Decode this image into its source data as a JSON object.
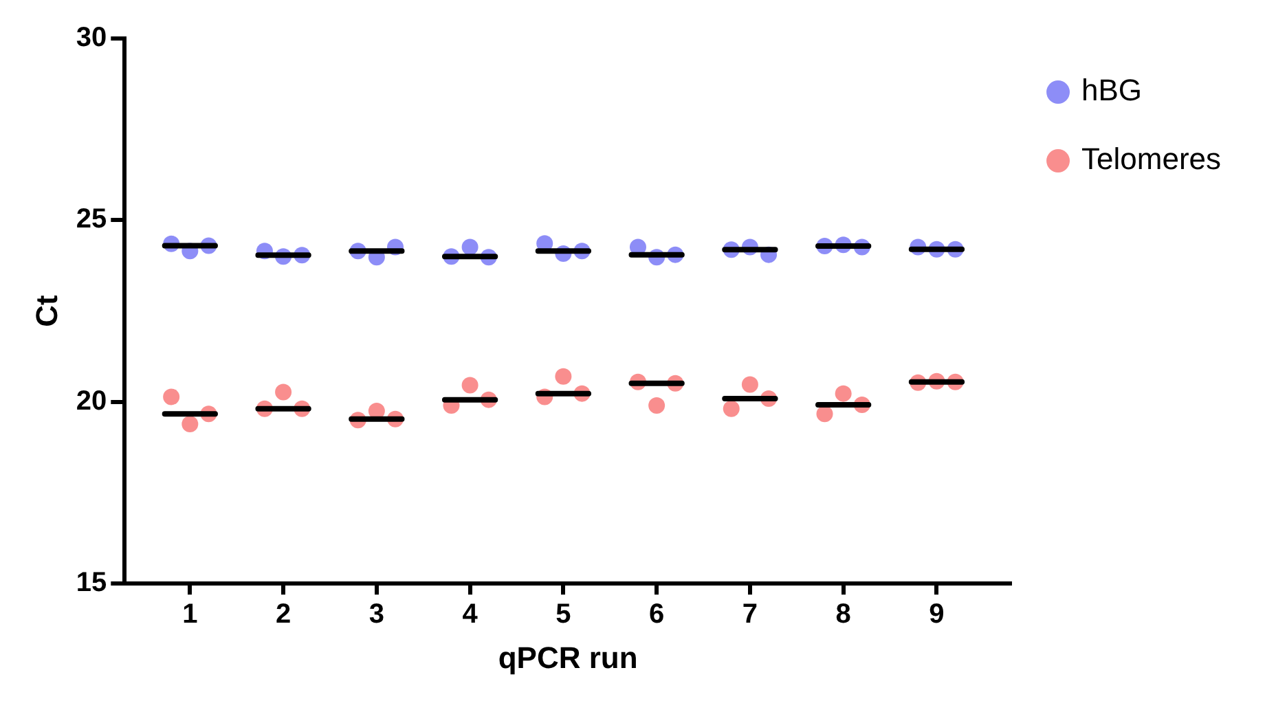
{
  "chart_data": {
    "type": "scatter",
    "xlabel": "qPCR run",
    "ylabel": "Ct",
    "xlim": [
      0.3,
      9.8
    ],
    "xticks": [
      1,
      2,
      3,
      4,
      5,
      6,
      7,
      8,
      9
    ],
    "ylim": [
      15,
      30
    ],
    "yticks": [
      15,
      20,
      25,
      30
    ],
    "grid": false,
    "legend": "top right",
    "series": [
      {
        "name": "hBG",
        "marker": "circle",
        "color": "#7070f5",
        "x": [
          0.8,
          1,
          1.2,
          1.8,
          2,
          2.2,
          2.8,
          3,
          3.2,
          3.8,
          4,
          4.2,
          4.8,
          5,
          5.2,
          5.8,
          6,
          6.2,
          6.8,
          7,
          7.2,
          7.8,
          8,
          8.2,
          8.8,
          9,
          9.2
        ],
        "values": [
          24.35,
          24.15,
          24.3,
          24.15,
          24.0,
          24.04,
          24.15,
          23.98,
          24.26,
          24.0,
          24.26,
          23.98,
          24.36,
          24.08,
          24.15,
          24.26,
          23.98,
          24.05,
          24.19,
          24.26,
          24.05,
          24.29,
          24.32,
          24.26,
          24.26,
          24.2,
          24.2
        ]
      },
      {
        "name": "Telomeres",
        "marker": "circle",
        "color": "#f77272",
        "x": [
          0.8,
          1,
          1.2,
          1.8,
          2,
          2.2,
          2.8,
          3,
          3.2,
          3.8,
          4,
          4.2,
          4.8,
          5,
          5.2,
          5.8,
          6,
          6.2,
          6.8,
          7,
          7.2,
          7.8,
          8,
          8.2,
          8.8,
          9,
          9.2
        ],
        "values": [
          20.14,
          19.39,
          19.67,
          19.81,
          20.27,
          19.81,
          19.5,
          19.75,
          19.53,
          19.9,
          20.46,
          20.06,
          20.14,
          20.7,
          20.23,
          20.55,
          19.9,
          20.51,
          19.81,
          20.48,
          20.09,
          19.67,
          20.23,
          19.92,
          20.53,
          20.57,
          20.55
        ]
      },
      {
        "type": "line",
        "marker": "none",
        "color": "#000000",
        "x": [
          0.73,
          1.27,
          1.5,
          1.73,
          2.27,
          2.5,
          2.73,
          3.27,
          3.5,
          3.73,
          4.27,
          4.5,
          4.73,
          5.27,
          5.5,
          5.73,
          6.27,
          6.5,
          6.73,
          7.27,
          7.5,
          7.73,
          8.27,
          8.5,
          8.73,
          9.27
        ],
        "values": [
          24.3,
          24.3,
          null,
          24.04,
          24.04,
          null,
          24.15,
          24.15,
          null,
          24.0,
          24.0,
          null,
          24.15,
          24.15,
          null,
          24.05,
          24.05,
          null,
          24.19,
          24.19,
          null,
          24.29,
          24.29,
          null,
          24.2,
          24.2
        ]
      },
      {
        "type": "line",
        "marker": "none",
        "color": "#000000",
        "x": [
          0.73,
          1.27,
          1.5,
          1.73,
          2.27,
          2.5,
          2.73,
          3.27,
          3.5,
          3.73,
          4.27,
          4.5,
          4.73,
          5.27,
          5.5,
          5.73,
          6.27,
          6.5,
          6.73,
          7.27,
          7.5,
          7.73,
          8.27,
          8.5,
          8.73,
          9.27
        ],
        "values": [
          19.67,
          19.67,
          null,
          19.81,
          19.81,
          null,
          19.53,
          19.53,
          null,
          20.06,
          20.06,
          null,
          20.23,
          20.23,
          null,
          20.51,
          20.51,
          null,
          20.09,
          20.09,
          null,
          19.92,
          19.92,
          null,
          20.55,
          20.55
        ]
      }
    ]
  }
}
